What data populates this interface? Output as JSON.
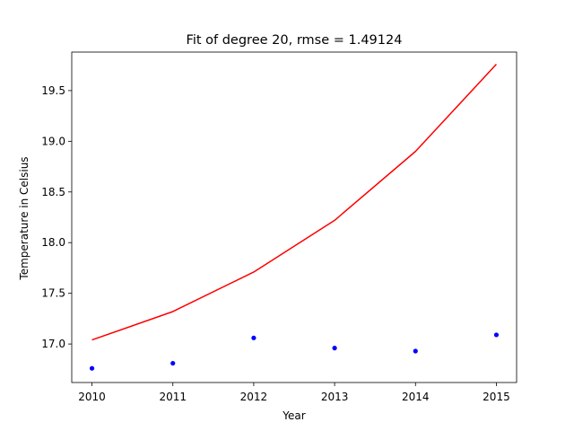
{
  "chart_data": {
    "type": "scatter+line",
    "title": "Fit of degree 20, rmse = 1.49124",
    "xlabel": "Year",
    "ylabel": "Temperature in Celsius",
    "xlim": [
      2009.75,
      2015.25
    ],
    "ylim": [
      16.62,
      19.88
    ],
    "x_ticks": [
      2010,
      2011,
      2012,
      2013,
      2014,
      2015
    ],
    "y_ticks": [
      17.0,
      17.5,
      18.0,
      18.5,
      19.0,
      19.5
    ],
    "grid": false,
    "series": [
      {
        "kind": "scatter",
        "color": "#0000ff",
        "x": [
          2010,
          2011,
          2012,
          2013,
          2014,
          2015
        ],
        "y": [
          16.76,
          16.81,
          17.06,
          16.96,
          16.93,
          17.09
        ]
      },
      {
        "kind": "line",
        "color": "#ff0000",
        "x": [
          2010,
          2011,
          2012,
          2013,
          2014,
          2015
        ],
        "y": [
          17.04,
          17.32,
          17.71,
          18.22,
          18.9,
          19.76
        ]
      }
    ]
  }
}
